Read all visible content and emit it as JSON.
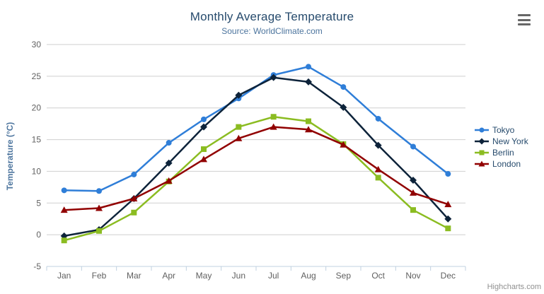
{
  "header": {
    "title": "Monthly Average Temperature",
    "subtitle": "Source: WorldClimate.com"
  },
  "credits": {
    "label": "Highcharts.com"
  },
  "export_menu": {
    "icon": "hamburger-icon"
  },
  "colors": {
    "title": "#274b6d",
    "subtitle": "#4d759e",
    "axis_label": "#606060",
    "axis_title": "#4d759e",
    "grid": "#cfcfcf",
    "axis_line": "#c0d0e0",
    "tick": "#c0d0e0",
    "legend_text": "#274b6d",
    "credit": "#909090"
  },
  "chart_data": {
    "type": "line",
    "title": "Monthly Average Temperature",
    "subtitle": "Source: WorldClimate.com",
    "ylabel": "Temperature (°C)",
    "xlabel": "",
    "ylim": [
      -5,
      30
    ],
    "ytick_step": 5,
    "grid": true,
    "legend_position": "right",
    "categories": [
      "Jan",
      "Feb",
      "Mar",
      "Apr",
      "May",
      "Jun",
      "Jul",
      "Aug",
      "Sep",
      "Oct",
      "Nov",
      "Dec"
    ],
    "series": [
      {
        "name": "Tokyo",
        "color": "#2f7ed8",
        "marker": "circle",
        "values": [
          7.0,
          6.9,
          9.5,
          14.5,
          18.2,
          21.5,
          25.2,
          26.5,
          23.3,
          18.3,
          13.9,
          9.6
        ]
      },
      {
        "name": "New York",
        "color": "#0d233a",
        "marker": "diamond",
        "values": [
          -0.2,
          0.8,
          5.7,
          11.3,
          17.0,
          22.0,
          24.8,
          24.1,
          20.1,
          14.1,
          8.6,
          2.5
        ]
      },
      {
        "name": "Berlin",
        "color": "#8bbc21",
        "marker": "square",
        "values": [
          -0.9,
          0.6,
          3.5,
          8.4,
          13.5,
          17.0,
          18.6,
          17.9,
          14.3,
          9.0,
          3.9,
          1.0
        ]
      },
      {
        "name": "London",
        "color": "#910000",
        "marker": "triangle",
        "values": [
          3.9,
          4.2,
          5.7,
          8.5,
          11.9,
          15.2,
          17.0,
          16.6,
          14.2,
          10.3,
          6.6,
          4.8
        ]
      }
    ]
  }
}
